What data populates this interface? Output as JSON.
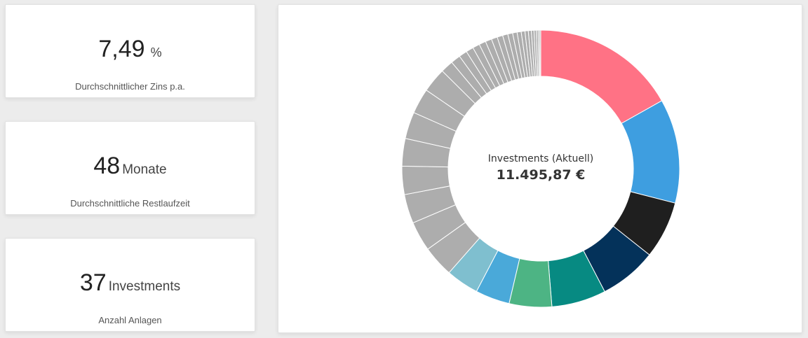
{
  "stats": [
    {
      "value": "7,49",
      "unit": "%",
      "label": "Durchschnittlicher Zins p.a."
    },
    {
      "value": "48",
      "unit": "Monate",
      "label": "Durchschnittliche Restlaufzeit"
    },
    {
      "value": "37",
      "unit": "Investments",
      "label": "Anzahl Anlagen"
    }
  ],
  "chart_data": {
    "type": "pie",
    "variant": "donut",
    "center_label": "Investments (Aktuell)",
    "center_value": "11.495,87 €",
    "colors": [
      "#ff7285",
      "#3e9ee0",
      "#1f1f1f",
      "#04325a",
      "#078a82",
      "#4db484",
      "#4aa9d9",
      "#7fbfcf",
      "#adadad",
      "#adadad",
      "#adadad",
      "#adadad",
      "#adadad",
      "#adadad",
      "#adadad",
      "#adadad",
      "#adadad",
      "#adadad",
      "#adadad",
      "#adadad",
      "#adadad",
      "#adadad",
      "#adadad",
      "#adadad",
      "#adadad",
      "#adadad",
      "#adadad",
      "#adadad",
      "#adadad",
      "#adadad",
      "#adadad",
      "#adadad",
      "#adadad",
      "#adadad",
      "#adadad",
      "#adadad",
      "#adadad"
    ],
    "values": [
      19.4,
      14.0,
      7.7,
      7.7,
      7.3,
      5.7,
      4.6,
      4.4,
      4.2,
      4.0,
      3.9,
      3.8,
      3.7,
      3.6,
      3.4,
      3.3,
      1.7,
      1.3,
      1.1,
      1.0,
      0.95,
      0.9,
      0.85,
      0.8,
      0.75,
      0.7,
      0.65,
      0.6,
      0.55,
      0.5,
      0.45,
      0.4,
      0.35,
      0.3,
      0.25,
      0.2,
      0.15
    ]
  }
}
